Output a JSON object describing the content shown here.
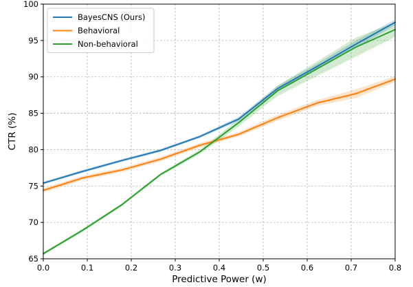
{
  "chart_data": {
    "type": "line",
    "xlabel": "Predictive Power (w)",
    "ylabel": "CTR (%)",
    "xlim": [
      0.0,
      0.8
    ],
    "ylim": [
      65,
      100
    ],
    "xticks": [
      0.0,
      0.1,
      0.2,
      0.3,
      0.4,
      0.5,
      0.6,
      0.7,
      0.8
    ],
    "yticks": [
      65,
      70,
      75,
      80,
      85,
      90,
      95,
      100
    ],
    "xtick_labels": [
      "0.0",
      "0.1",
      "0.2",
      "0.3",
      "0.4",
      "0.5",
      "0.6",
      "0.7",
      "0.8"
    ],
    "ytick_labels": [
      "65",
      "70",
      "75",
      "80",
      "85",
      "90",
      "95",
      "100"
    ],
    "grid": true,
    "legend_position": "top-left",
    "x": [
      0.0,
      0.089,
      0.178,
      0.267,
      0.356,
      0.444,
      0.533,
      0.622,
      0.711,
      0.8
    ],
    "series": [
      {
        "name": "BayesCNS (Ours)",
        "color": "#1f77b4",
        "values": [
          75.4,
          77.0,
          78.5,
          79.9,
          81.8,
          84.2,
          88.4,
          91.4,
          94.5,
          97.5
        ],
        "band": [
          0.2,
          0.2,
          0.2,
          0.2,
          0.2,
          0.3,
          0.4,
          0.4,
          0.5,
          0.4
        ]
      },
      {
        "name": "Behavioral",
        "color": "#ff7f0e",
        "values": [
          74.4,
          76.1,
          77.2,
          78.7,
          80.6,
          82.1,
          84.4,
          86.4,
          87.7,
          89.7
        ],
        "band": [
          0.3,
          0.3,
          0.3,
          0.3,
          0.3,
          0.3,
          0.4,
          0.4,
          0.6,
          0.4
        ]
      },
      {
        "name": "Non-behavioral",
        "color": "#2ca02c",
        "values": [
          65.7,
          68.9,
          72.4,
          76.6,
          79.7,
          83.7,
          88.1,
          91.1,
          94.1,
          96.5
        ],
        "band": [
          0.2,
          0.2,
          0.2,
          0.2,
          0.3,
          0.5,
          0.7,
          1.0,
          1.3,
          1.0
        ]
      }
    ]
  }
}
